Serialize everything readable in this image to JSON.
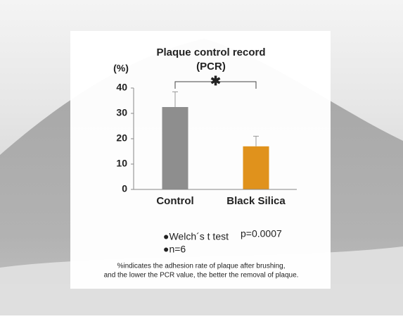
{
  "chart_data": {
    "type": "bar",
    "title_lines": [
      "Plaque control record",
      "(PCR)"
    ],
    "y_label": "(%)",
    "categories": [
      "Control",
      "Black Silica"
    ],
    "values": [
      32.5,
      17
    ],
    "errors": [
      6,
      4
    ],
    "colors": [
      "#8e8e8e",
      "#e0921c"
    ],
    "ylim": [
      0,
      40
    ],
    "yticks": [
      0,
      10,
      20,
      30,
      40
    ],
    "significance": "✱",
    "notes": [
      "●Welch´s t test",
      "●n=6"
    ],
    "p_value": "p=0.0007",
    "footnote": [
      "%indicates the adhesion rate of plaque after brushing,",
      "and the lower the PCR value, the better the removal of plaque."
    ]
  }
}
